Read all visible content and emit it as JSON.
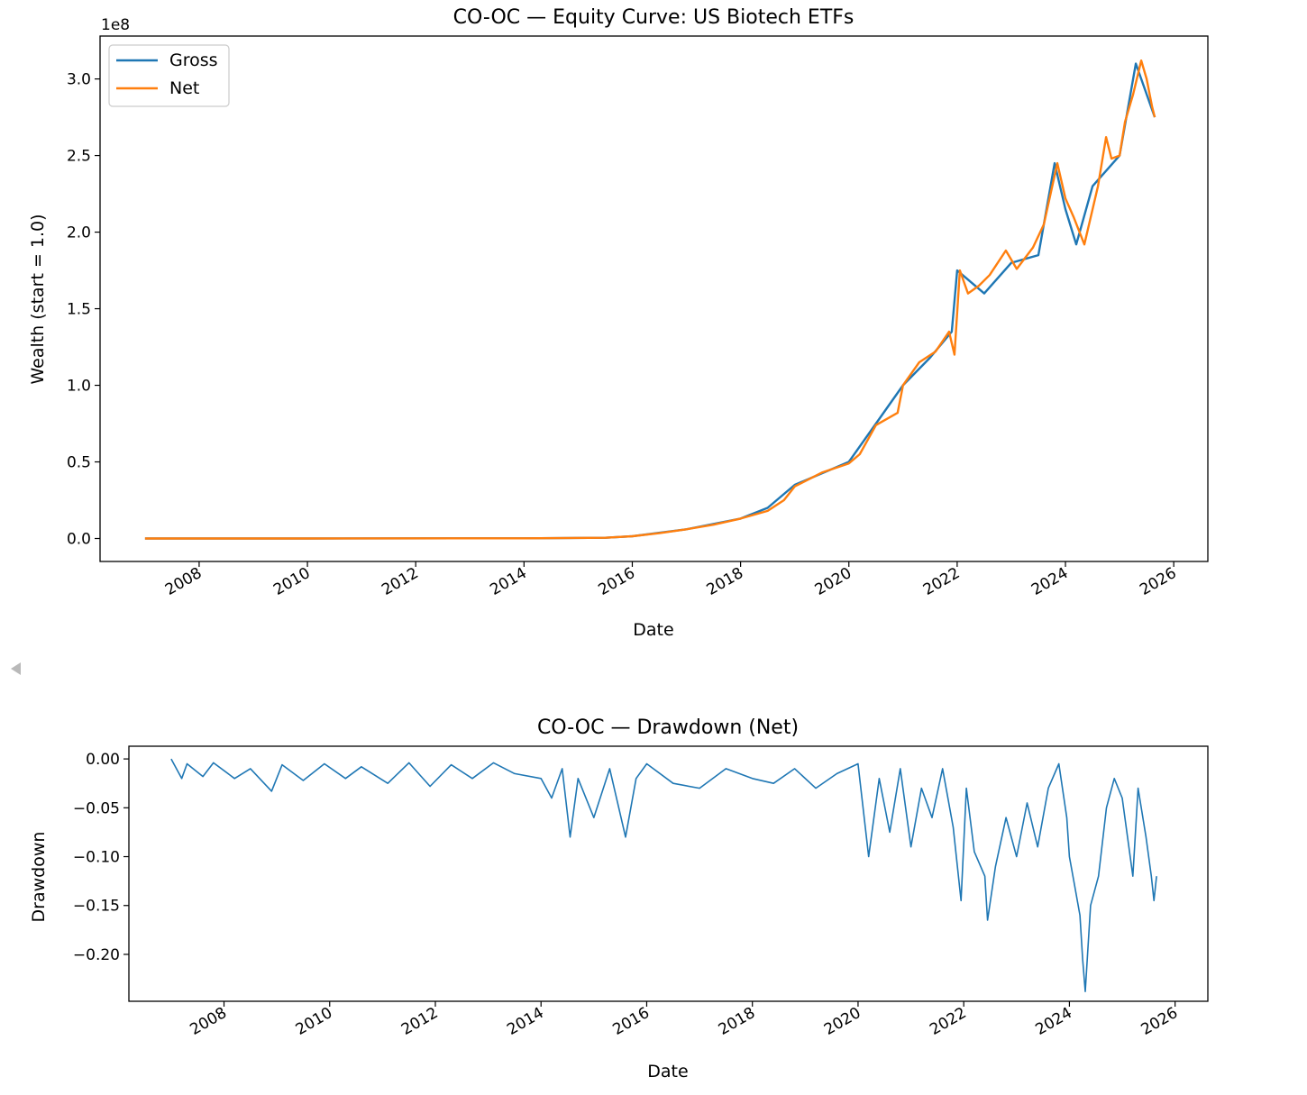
{
  "nav": {
    "prev_icon": "chevron-left-icon"
  },
  "colors": {
    "gross": "#1f77b4",
    "net": "#ff7f0e",
    "drawdown": "#1f77b4",
    "axis": "#000000"
  },
  "chart_data": [
    {
      "type": "line",
      "title": "CO-OC — Equity Curve: US Biotech ETFs",
      "xlabel": "Date",
      "ylabel": "Wealth (start = 1.0)",
      "y_offset_label": "1e8",
      "y_scale": 100000000,
      "xlim": [
        2006.17,
        2026.63
      ],
      "ylim": [
        -15000000,
        328000000
      ],
      "xticks": [
        2008,
        2010,
        2012,
        2014,
        2016,
        2018,
        2020,
        2022,
        2024,
        2026
      ],
      "xtick_labels": [
        "2008",
        "2010",
        "2012",
        "2014",
        "2016",
        "2018",
        "2020",
        "2022",
        "2024",
        "2026"
      ],
      "yticks": [
        0,
        50000000,
        100000000,
        150000000,
        200000000,
        250000000,
        300000000
      ],
      "ytick_labels": [
        "0.0",
        "0.5",
        "1.0",
        "1.5",
        "2.0",
        "2.5",
        "3.0"
      ],
      "legend": {
        "position": "top-left",
        "entries": [
          "Gross",
          "Net"
        ]
      },
      "series": [
        {
          "name": "Gross",
          "x": [
            2007.0,
            2010.0,
            2014.0,
            2015.5,
            2016.0,
            2017.0,
            2018.0,
            2018.5,
            2019.0,
            2020.0,
            2020.5,
            2021.0,
            2021.5,
            2021.9,
            2022.0,
            2022.5,
            2023.0,
            2023.5,
            2023.8,
            2024.0,
            2024.2,
            2024.5,
            2025.0,
            2025.3,
            2025.5,
            2025.65
          ],
          "values": [
            0,
            0,
            100000,
            500000,
            1500000,
            6000000,
            13000000,
            20000000,
            35000000,
            50000000,
            75000000,
            100000000,
            118000000,
            135000000,
            175000000,
            160000000,
            180000000,
            185000000,
            245000000,
            215000000,
            192000000,
            230000000,
            250000000,
            310000000,
            290000000,
            275000000
          ]
        },
        {
          "name": "Net",
          "x": [
            2007.0,
            2010.0,
            2014.0,
            2015.5,
            2016.0,
            2016.5,
            2017.0,
            2017.5,
            2018.0,
            2018.5,
            2018.8,
            2019.0,
            2019.5,
            2020.0,
            2020.2,
            2020.5,
            2020.9,
            2021.0,
            2021.3,
            2021.6,
            2021.85,
            2021.95,
            2022.05,
            2022.2,
            2022.4,
            2022.6,
            2022.9,
            2023.1,
            2023.4,
            2023.6,
            2023.85,
            2024.0,
            2024.15,
            2024.35,
            2024.6,
            2024.75,
            2024.85,
            2025.0,
            2025.1,
            2025.25,
            2025.4,
            2025.5,
            2025.6,
            2025.65
          ],
          "values": [
            0,
            0,
            100000,
            500000,
            1500000,
            3500000,
            6000000,
            9000000,
            13000000,
            18000000,
            25000000,
            34000000,
            43000000,
            49000000,
            55000000,
            74000000,
            82000000,
            100000000,
            115000000,
            122000000,
            135000000,
            120000000,
            175000000,
            160000000,
            165000000,
            172000000,
            188000000,
            176000000,
            190000000,
            205000000,
            245000000,
            222000000,
            210000000,
            192000000,
            230000000,
            262000000,
            248000000,
            250000000,
            272000000,
            290000000,
            312000000,
            300000000,
            282000000,
            275000000
          ]
        }
      ]
    },
    {
      "type": "line",
      "title": "CO-OC — Drawdown (Net)",
      "xlabel": "Date",
      "ylabel": "Drawdown",
      "xlim": [
        2006.2,
        2026.62
      ],
      "ylim": [
        -0.248,
        0.013
      ],
      "xticks": [
        2008,
        2010,
        2012,
        2014,
        2016,
        2018,
        2020,
        2022,
        2024,
        2026
      ],
      "xtick_labels": [
        "2008",
        "2010",
        "2012",
        "2014",
        "2016",
        "2018",
        "2020",
        "2022",
        "2024",
        "2026"
      ],
      "yticks": [
        0.0,
        -0.05,
        -0.1,
        -0.15,
        -0.2
      ],
      "ytick_labels": [
        "0.00",
        "−0.05",
        "−0.10",
        "−0.15",
        "−0.20"
      ],
      "series": [
        {
          "name": "Net",
          "x": [
            2007.0,
            2007.2,
            2007.3,
            2007.6,
            2007.8,
            2008.2,
            2008.5,
            2008.9,
            2009.1,
            2009.5,
            2009.9,
            2010.3,
            2010.6,
            2011.1,
            2011.5,
            2011.9,
            2012.3,
            2012.7,
            2013.1,
            2013.5,
            2014.0,
            2014.2,
            2014.4,
            2014.55,
            2014.7,
            2015.0,
            2015.3,
            2015.6,
            2015.8,
            2016.0,
            2016.5,
            2017.0,
            2017.5,
            2018.0,
            2018.4,
            2018.8,
            2019.2,
            2019.6,
            2020.0,
            2020.2,
            2020.4,
            2020.6,
            2020.8,
            2021.0,
            2021.2,
            2021.4,
            2021.6,
            2021.8,
            2021.95,
            2022.05,
            2022.2,
            2022.4,
            2022.45,
            2022.6,
            2022.8,
            2023.0,
            2023.2,
            2023.4,
            2023.6,
            2023.8,
            2023.95,
            2024.0,
            2024.1,
            2024.2,
            2024.25,
            2024.3,
            2024.4,
            2024.55,
            2024.7,
            2024.85,
            2025.0,
            2025.2,
            2025.3,
            2025.45,
            2025.55,
            2025.6,
            2025.65
          ],
          "values": [
            0.0,
            -0.02,
            -0.005,
            -0.018,
            -0.004,
            -0.02,
            -0.01,
            -0.033,
            -0.006,
            -0.022,
            -0.005,
            -0.02,
            -0.008,
            -0.025,
            -0.004,
            -0.028,
            -0.006,
            -0.02,
            -0.004,
            -0.015,
            -0.02,
            -0.04,
            -0.01,
            -0.08,
            -0.02,
            -0.06,
            -0.01,
            -0.08,
            -0.02,
            -0.005,
            -0.025,
            -0.03,
            -0.01,
            -0.02,
            -0.025,
            -0.01,
            -0.03,
            -0.015,
            -0.005,
            -0.1,
            -0.02,
            -0.075,
            -0.01,
            -0.09,
            -0.03,
            -0.06,
            -0.01,
            -0.07,
            -0.145,
            -0.03,
            -0.095,
            -0.12,
            -0.165,
            -0.11,
            -0.06,
            -0.1,
            -0.045,
            -0.09,
            -0.03,
            -0.005,
            -0.06,
            -0.1,
            -0.13,
            -0.16,
            -0.205,
            -0.238,
            -0.15,
            -0.12,
            -0.05,
            -0.02,
            -0.04,
            -0.12,
            -0.03,
            -0.08,
            -0.12,
            -0.145,
            -0.12
          ]
        }
      ]
    }
  ]
}
